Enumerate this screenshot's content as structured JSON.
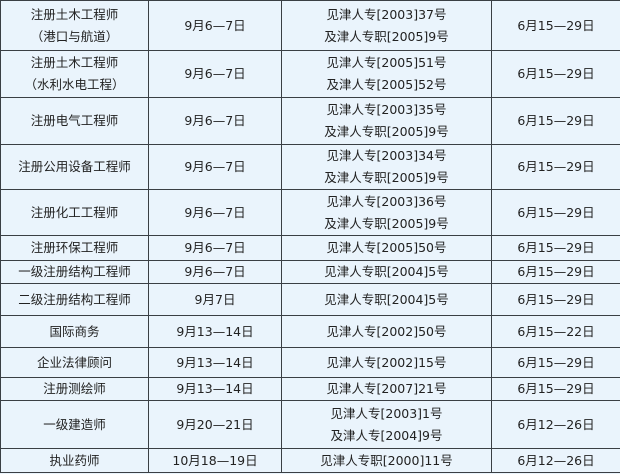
{
  "rows": [
    {
      "name": [
        "注册土木工程师",
        "（港口与航道）"
      ],
      "exam": "9月6—7日",
      "doc": [
        "见津人专[2003]37号",
        "及津人专职[2005]9号"
      ],
      "signup": "6月15—29日"
    },
    {
      "name": [
        "注册土木工程师",
        "（水利水电工程）"
      ],
      "exam": "9月6—7日",
      "doc": [
        "见津人专[2005]51号",
        "及津人专[2005]52号"
      ],
      "signup": "6月15—29日"
    },
    {
      "name": [
        "注册电气工程师"
      ],
      "exam": "9月6—7日",
      "doc": [
        "见津人专[2003]35号",
        "及津人专职[2005]9号"
      ],
      "signup": "6月15—29日"
    },
    {
      "name": [
        "注册公用设备工程师"
      ],
      "exam": "9月6—7日",
      "doc": [
        "见津人专[2003]34号",
        "及津人专职[2005]9号"
      ],
      "signup": "6月15—29日"
    },
    {
      "name": [
        "注册化工工程师"
      ],
      "exam": "9月6—7日",
      "doc": [
        "见津人专[2003]36号",
        "及津人专职[2005]9号"
      ],
      "signup": "6月15—29日"
    },
    {
      "name": [
        "注册环保工程师"
      ],
      "exam": "9月6—7日",
      "doc": [
        "见津人专[2005]50号"
      ],
      "signup": "6月15—29日"
    },
    {
      "name": [
        "一级注册结构工程师"
      ],
      "exam": "9月6—7日",
      "doc": [
        "见津人专职[2004]5号"
      ],
      "signup": "6月15—29日"
    },
    {
      "name": [
        "二级注册结构工程师"
      ],
      "exam": "9月7日",
      "doc": [
        "见津人专职[2004]5号"
      ],
      "signup": "6月15—29日"
    },
    {
      "name": [
        "国际商务"
      ],
      "exam": "9月13—14日",
      "doc": [
        "见津人专[2002]50号"
      ],
      "signup": "6月15—22日"
    },
    {
      "name": [
        "企业法律顾问"
      ],
      "exam": "9月13—14日",
      "doc": [
        "见津人专[2002]15号"
      ],
      "signup": "6月15—29日"
    },
    {
      "name": [
        "注册测绘师"
      ],
      "exam": "9月13—14日",
      "doc": [
        "见津人专[2007]21号"
      ],
      "signup": "6月15—29日"
    },
    {
      "name": [
        "一级建造师"
      ],
      "exam": "9月20—21日",
      "doc": [
        "见津人专[2003]1号",
        "及津人专[2004]9号"
      ],
      "signup": "6月12—26日"
    },
    {
      "name": [
        "执业药师"
      ],
      "exam": "10月18—19日",
      "doc": [
        "见津人专职[2000]11号"
      ],
      "signup": "6月12—26日"
    }
  ]
}
